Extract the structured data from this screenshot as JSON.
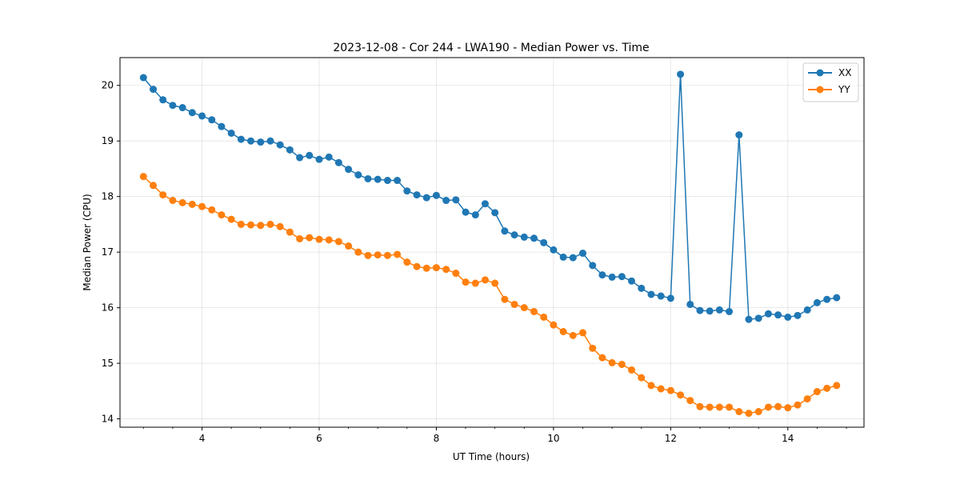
{
  "chart_data": {
    "type": "line",
    "title": "2023-12-08 - Cor 244 - LWA190 - Median Power vs. Time",
    "xlabel": "UT Time (hours)",
    "ylabel": "Median Power (CPU)",
    "xlim": [
      2.6,
      15.3
    ],
    "ylim": [
      13.85,
      20.5
    ],
    "xticks": [
      4,
      6,
      8,
      10,
      12,
      14
    ],
    "yticks": [
      14,
      15,
      16,
      17,
      18,
      19,
      20
    ],
    "grid": true,
    "legend_position": "top-right",
    "x": [
      3.0,
      3.167,
      3.333,
      3.5,
      3.667,
      3.833,
      4.0,
      4.167,
      4.333,
      4.5,
      4.667,
      4.833,
      5.0,
      5.167,
      5.333,
      5.5,
      5.667,
      5.833,
      6.0,
      6.167,
      6.333,
      6.5,
      6.667,
      6.833,
      7.0,
      7.167,
      7.333,
      7.5,
      7.667,
      7.833,
      8.0,
      8.167,
      8.333,
      8.5,
      8.667,
      8.833,
      9.0,
      9.167,
      9.333,
      9.5,
      9.667,
      9.833,
      10.0,
      10.167,
      10.333,
      10.5,
      10.667,
      10.833,
      11.0,
      11.167,
      11.333,
      11.5,
      11.667,
      11.833,
      12.0,
      12.167,
      12.333,
      12.5,
      12.667,
      12.833,
      13.0,
      13.167,
      13.333,
      13.5,
      13.667,
      13.833,
      14.0,
      14.167,
      14.333,
      14.5,
      14.667,
      14.833
    ],
    "series": [
      {
        "name": "XX",
        "color": "#1f77b4",
        "values": [
          20.14,
          19.93,
          19.74,
          19.64,
          19.6,
          19.51,
          19.45,
          19.38,
          19.26,
          19.14,
          19.03,
          19.0,
          18.98,
          19.0,
          18.93,
          18.84,
          18.7,
          18.74,
          18.67,
          18.71,
          18.61,
          18.49,
          18.39,
          18.32,
          18.31,
          18.29,
          18.29,
          18.1,
          18.03,
          17.98,
          18.02,
          17.93,
          17.94,
          17.72,
          17.67,
          17.87,
          17.71,
          17.38,
          17.31,
          17.27,
          17.25,
          17.17,
          17.04,
          16.91,
          16.9,
          16.98,
          16.76,
          16.59,
          16.55,
          16.56,
          16.48,
          16.35,
          16.24,
          16.21,
          16.17,
          20.2,
          16.06,
          15.95,
          15.94,
          15.96,
          15.93,
          19.11,
          15.79,
          15.81,
          15.89,
          15.87,
          15.83,
          15.86,
          15.96,
          16.09,
          16.15,
          16.18
        ]
      },
      {
        "name": "YY",
        "color": "#ff7f0e",
        "values": [
          18.36,
          18.2,
          18.03,
          17.93,
          17.89,
          17.86,
          17.82,
          17.76,
          17.67,
          17.59,
          17.5,
          17.49,
          17.48,
          17.5,
          17.46,
          17.36,
          17.24,
          17.26,
          17.23,
          17.22,
          17.19,
          17.11,
          17.0,
          16.94,
          16.95,
          16.94,
          16.96,
          16.82,
          16.74,
          16.71,
          16.72,
          16.69,
          16.62,
          16.46,
          16.44,
          16.5,
          16.44,
          16.15,
          16.06,
          16.0,
          15.93,
          15.83,
          15.69,
          15.57,
          15.5,
          15.55,
          15.27,
          15.1,
          15.01,
          14.98,
          14.88,
          14.74,
          14.6,
          14.54,
          14.51,
          14.43,
          14.33,
          14.22,
          14.21,
          14.21,
          14.21,
          14.13,
          14.1,
          14.13,
          14.21,
          14.22,
          14.2,
          14.25,
          14.36,
          14.49,
          14.55,
          14.6
        ]
      }
    ]
  }
}
